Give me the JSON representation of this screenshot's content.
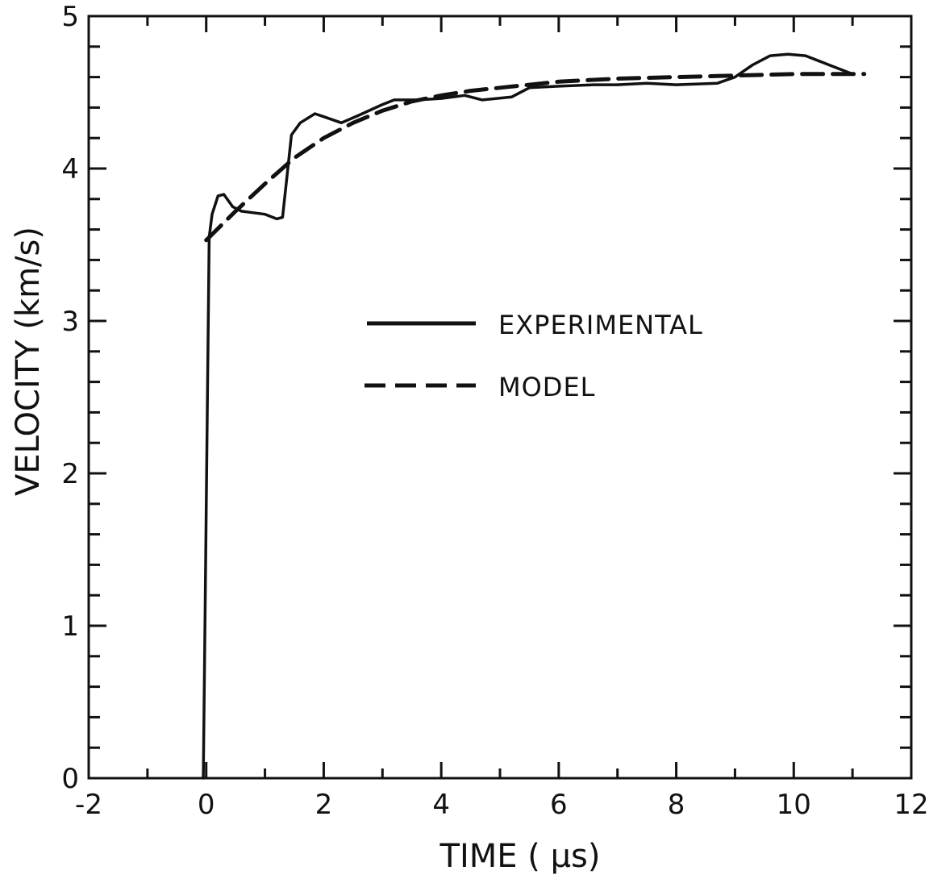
{
  "chart_data": {
    "type": "line",
    "xlabel": "TIME ( μs)",
    "ylabel": "VELOCITY (km/s)",
    "xlim": [
      -2,
      12
    ],
    "ylim": [
      0,
      5
    ],
    "xticks": [
      -2,
      0,
      2,
      4,
      6,
      8,
      10,
      12
    ],
    "xtick_labels": [
      "-2",
      "0",
      "2",
      "4",
      "6",
      "8",
      "10",
      "12"
    ],
    "yticks": [
      0,
      1,
      2,
      3,
      4,
      5
    ],
    "ytick_labels": [
      "0",
      "1",
      "2",
      "3",
      "4",
      "5"
    ],
    "x_minor_step": 1,
    "y_minor_step": 0.2,
    "grid": false,
    "legend_position": "center",
    "series": [
      {
        "name": "EXPERIMENTAL",
        "style": "solid",
        "x": [
          -0.05,
          0.05,
          0.1,
          0.2,
          0.3,
          0.45,
          0.6,
          0.8,
          1.0,
          1.2,
          1.3,
          1.45,
          1.6,
          1.85,
          2.0,
          2.3,
          2.6,
          3.0,
          3.2,
          3.6,
          4.0,
          4.4,
          4.7,
          5.2,
          5.5,
          6.0,
          6.6,
          7.0,
          7.5,
          8.0,
          8.7,
          9.0,
          9.3,
          9.6,
          9.9,
          10.2,
          10.6,
          11.0
        ],
        "y": [
          0.0,
          3.55,
          3.7,
          3.82,
          3.83,
          3.75,
          3.72,
          3.71,
          3.7,
          3.67,
          3.68,
          4.22,
          4.3,
          4.36,
          4.34,
          4.3,
          4.35,
          4.42,
          4.45,
          4.45,
          4.46,
          4.48,
          4.45,
          4.47,
          4.53,
          4.54,
          4.55,
          4.55,
          4.56,
          4.55,
          4.56,
          4.6,
          4.68,
          4.74,
          4.75,
          4.74,
          4.68,
          4.62
        ]
      },
      {
        "name": "MODEL",
        "style": "dashed",
        "x": [
          0.0,
          0.5,
          1.0,
          1.5,
          2.0,
          2.5,
          3.0,
          3.5,
          4.0,
          4.5,
          5.0,
          5.5,
          6.0,
          7.0,
          8.0,
          9.0,
          10.0,
          11.0,
          11.2
        ],
        "y": [
          3.53,
          3.72,
          3.9,
          4.07,
          4.2,
          4.3,
          4.38,
          4.44,
          4.48,
          4.51,
          4.53,
          4.55,
          4.57,
          4.59,
          4.6,
          4.61,
          4.62,
          4.62,
          4.62
        ]
      }
    ]
  }
}
